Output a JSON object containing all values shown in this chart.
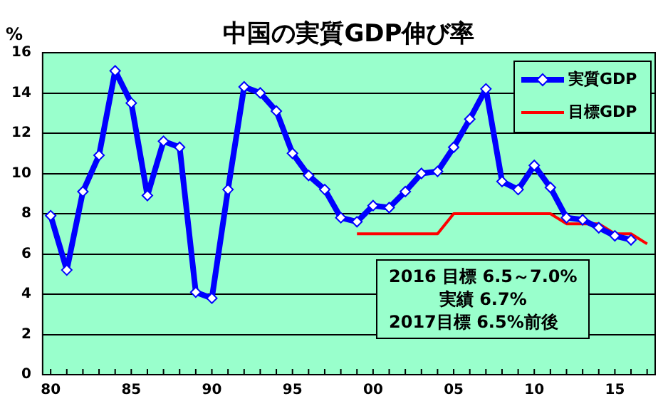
{
  "chart_data": {
    "type": "line",
    "title": "中国の実質GDP伸び率",
    "ylabel": "%",
    "categories": [
      "80",
      null,
      null,
      null,
      null,
      "85",
      null,
      null,
      null,
      null,
      "90",
      null,
      null,
      null,
      null,
      "95",
      null,
      null,
      null,
      null,
      "00",
      null,
      null,
      null,
      null,
      "05",
      null,
      null,
      null,
      null,
      "10",
      null,
      null,
      null,
      null,
      "15",
      null,
      null
    ],
    "series": [
      {
        "name": "実質GDP",
        "color": "#0000ff",
        "marker": "diamond",
        "values": [
          7.9,
          5.2,
          9.1,
          10.9,
          15.1,
          13.5,
          8.9,
          11.6,
          11.3,
          4.1,
          3.8,
          9.2,
          14.3,
          14.0,
          13.1,
          11.0,
          9.9,
          9.2,
          7.8,
          7.6,
          8.4,
          8.3,
          9.1,
          10.0,
          10.1,
          11.3,
          12.7,
          14.2,
          9.6,
          9.2,
          10.4,
          9.3,
          7.8,
          7.7,
          7.3,
          6.9,
          6.7,
          null
        ]
      },
      {
        "name": "目標GDP",
        "color": "#ff0000",
        "marker": "none",
        "values": [
          null,
          null,
          null,
          null,
          null,
          null,
          null,
          null,
          null,
          null,
          null,
          null,
          null,
          null,
          null,
          null,
          null,
          null,
          null,
          7,
          7,
          7,
          7,
          7,
          7,
          8,
          8,
          8,
          8,
          8,
          8,
          8,
          7.5,
          7.5,
          7.5,
          7,
          7,
          6.5
        ]
      }
    ],
    "ylim": [
      0,
      16
    ],
    "yticks": [
      0,
      2,
      4,
      6,
      8,
      10,
      12,
      14,
      16
    ],
    "grid": "y",
    "legend": "top right",
    "annotations": [
      "2016 目標 6.5～7.0%",
      "実績 6.7%",
      "2017目標 6.5%前後"
    ]
  }
}
